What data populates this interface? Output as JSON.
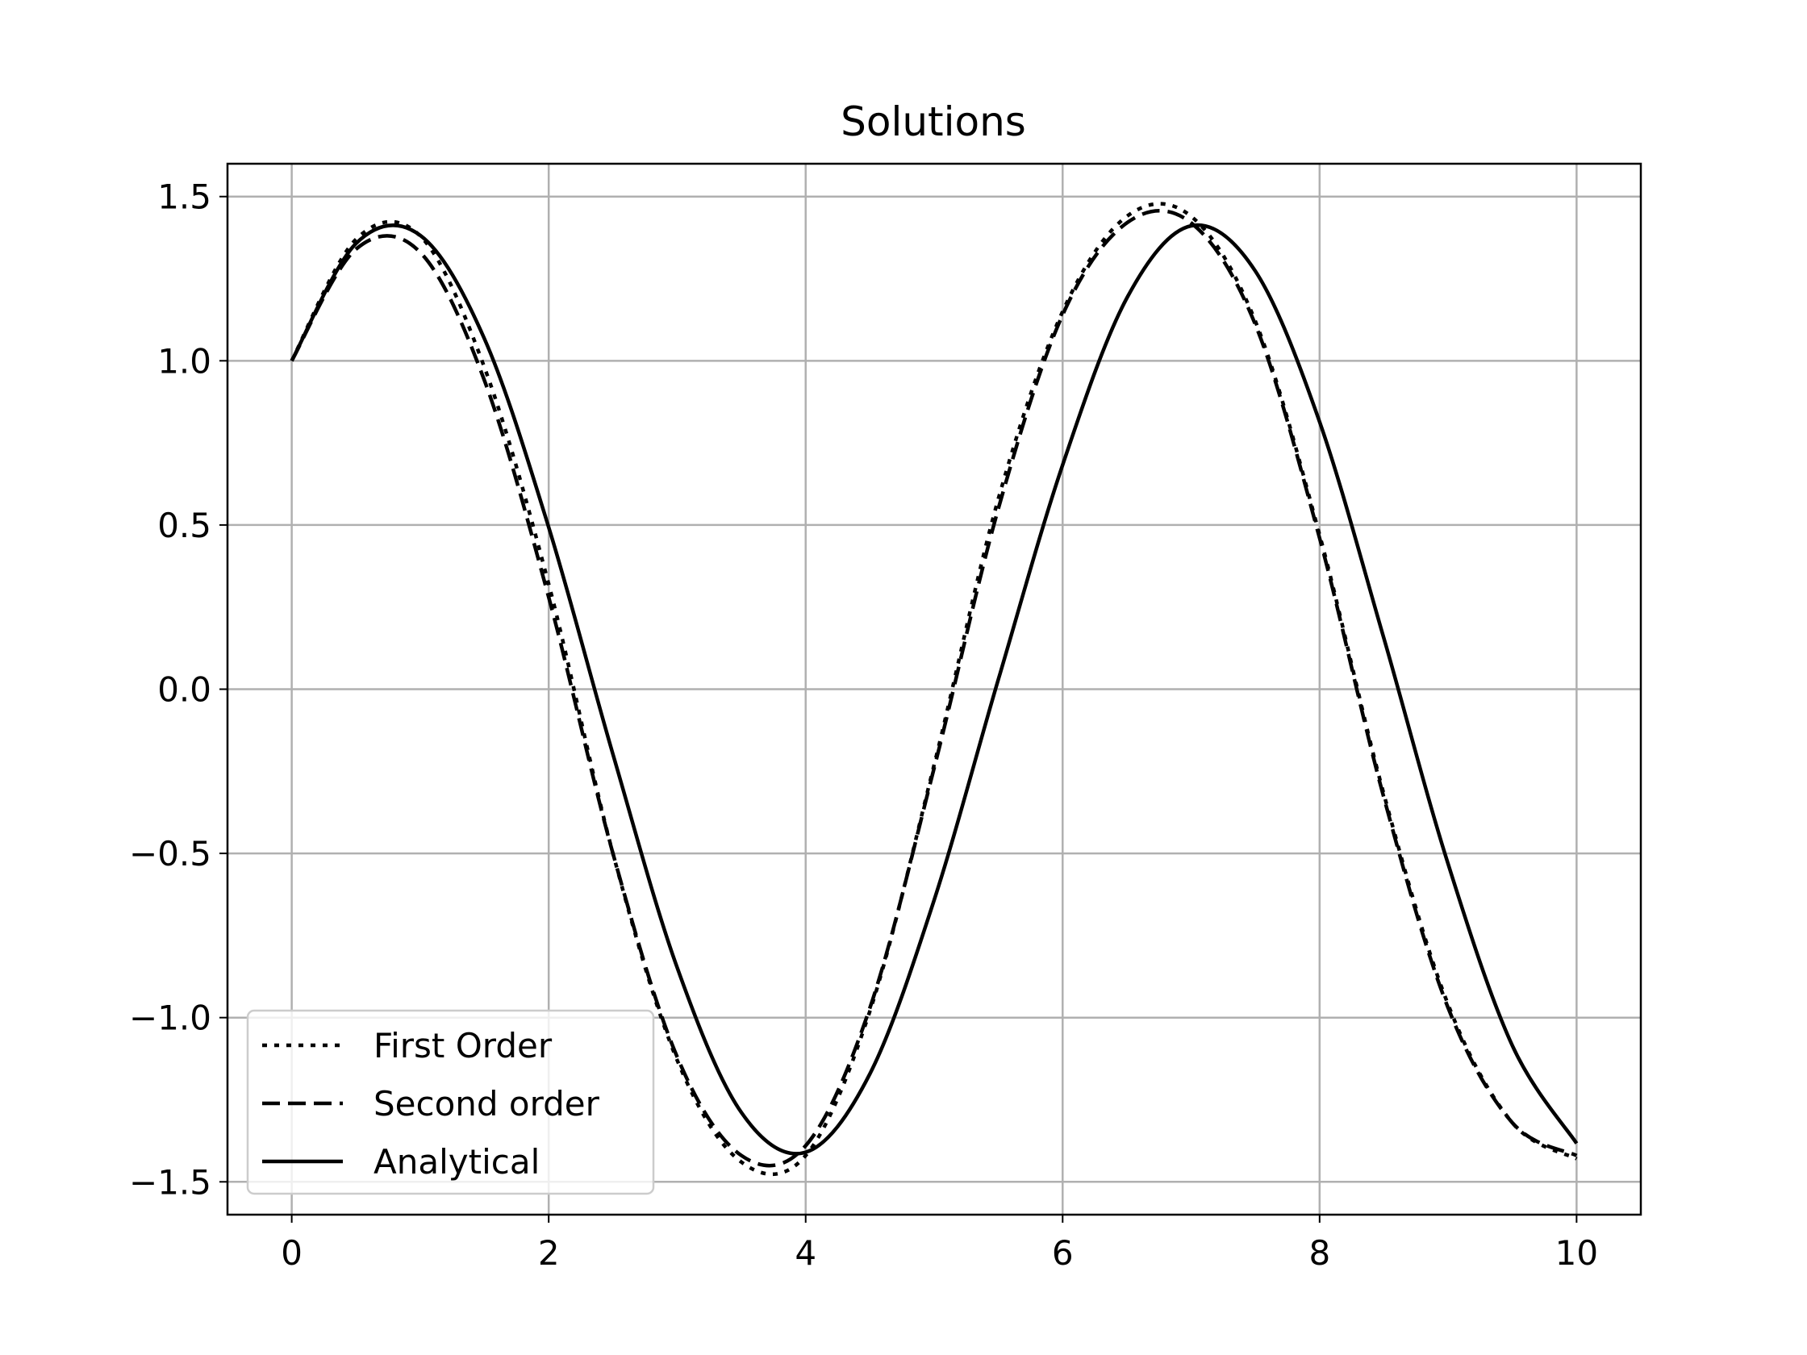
{
  "chart_data": {
    "type": "line",
    "title": "Solutions",
    "xlabel": "",
    "ylabel": "",
    "xlim": [
      -0.5,
      10.5
    ],
    "ylim": [
      -1.6,
      1.6
    ],
    "xticks": [
      0,
      2,
      4,
      6,
      8,
      10
    ],
    "xtick_labels": [
      "0",
      "2",
      "4",
      "6",
      "8",
      "10"
    ],
    "yticks": [
      -1.5,
      -1.0,
      -0.5,
      0.0,
      0.5,
      1.0,
      1.5
    ],
    "ytick_labels": [
      "−1.5",
      "−1.0",
      "−0.5",
      "0.0",
      "0.5",
      "1.0",
      "1.5"
    ],
    "grid": true,
    "legend_position": "lower-left",
    "x": [
      0.0,
      0.5,
      1.0,
      1.5,
      2.0,
      2.5,
      3.0,
      3.5,
      4.0,
      4.5,
      5.0,
      5.5,
      6.0,
      6.5,
      7.0,
      7.5,
      8.0,
      8.5,
      9.0,
      9.5,
      10.0
    ],
    "series": [
      {
        "name": "First Order",
        "style": "dotted",
        "color": "#000000",
        "values": [
          1.0,
          1.37,
          1.38,
          0.98,
          0.32,
          -0.5,
          -1.13,
          -1.44,
          -1.42,
          -0.98,
          -0.23,
          0.58,
          1.15,
          1.44,
          1.44,
          1.12,
          0.47,
          -0.32,
          -0.96,
          -1.32,
          -1.43
        ]
      },
      {
        "name": "Second order",
        "style": "dashed",
        "color": "#000000",
        "values": [
          1.0,
          1.34,
          1.33,
          0.94,
          0.28,
          -0.5,
          -1.12,
          -1.42,
          -1.39,
          -0.97,
          -0.24,
          0.55,
          1.14,
          1.42,
          1.42,
          1.11,
          0.46,
          -0.33,
          -0.97,
          -1.32,
          -1.42
        ]
      },
      {
        "name": "Analytical",
        "style": "solid",
        "color": "#000000",
        "values": [
          1.0,
          1.357,
          1.382,
          1.067,
          0.493,
          -0.198,
          -0.848,
          -1.289,
          -1.41,
          -1.171,
          -0.642,
          0.03,
          0.683,
          1.191,
          1.411,
          1.273,
          0.814,
          0.155,
          -0.532,
          -1.085,
          -1.383
        ]
      }
    ]
  }
}
